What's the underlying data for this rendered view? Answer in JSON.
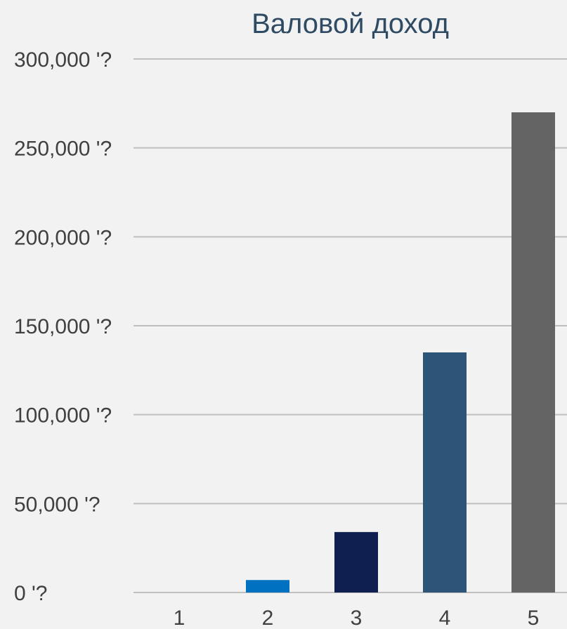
{
  "chart_data": {
    "type": "bar",
    "title": "Валовой доход",
    "xlabel": "",
    "ylabel": "",
    "categories": [
      "1",
      "2",
      "3",
      "4",
      "5"
    ],
    "values": [
      0,
      7000,
      34000,
      135000,
      270000
    ],
    "ylim": [
      0,
      300000
    ],
    "yticks": [
      0,
      50000,
      100000,
      150000,
      200000,
      250000,
      300000
    ],
    "ytick_labels": [
      "0 '?",
      "50,000 '?",
      "100,000 '?",
      "150,000 '?",
      "200,000 '?",
      "250,000 '?",
      "300,000 '?"
    ],
    "bar_colors": [
      "#d9d9d9",
      "#0070c0",
      "#0f1f4f",
      "#2d5577",
      "#646464"
    ],
    "grid": true,
    "legend": "none"
  }
}
